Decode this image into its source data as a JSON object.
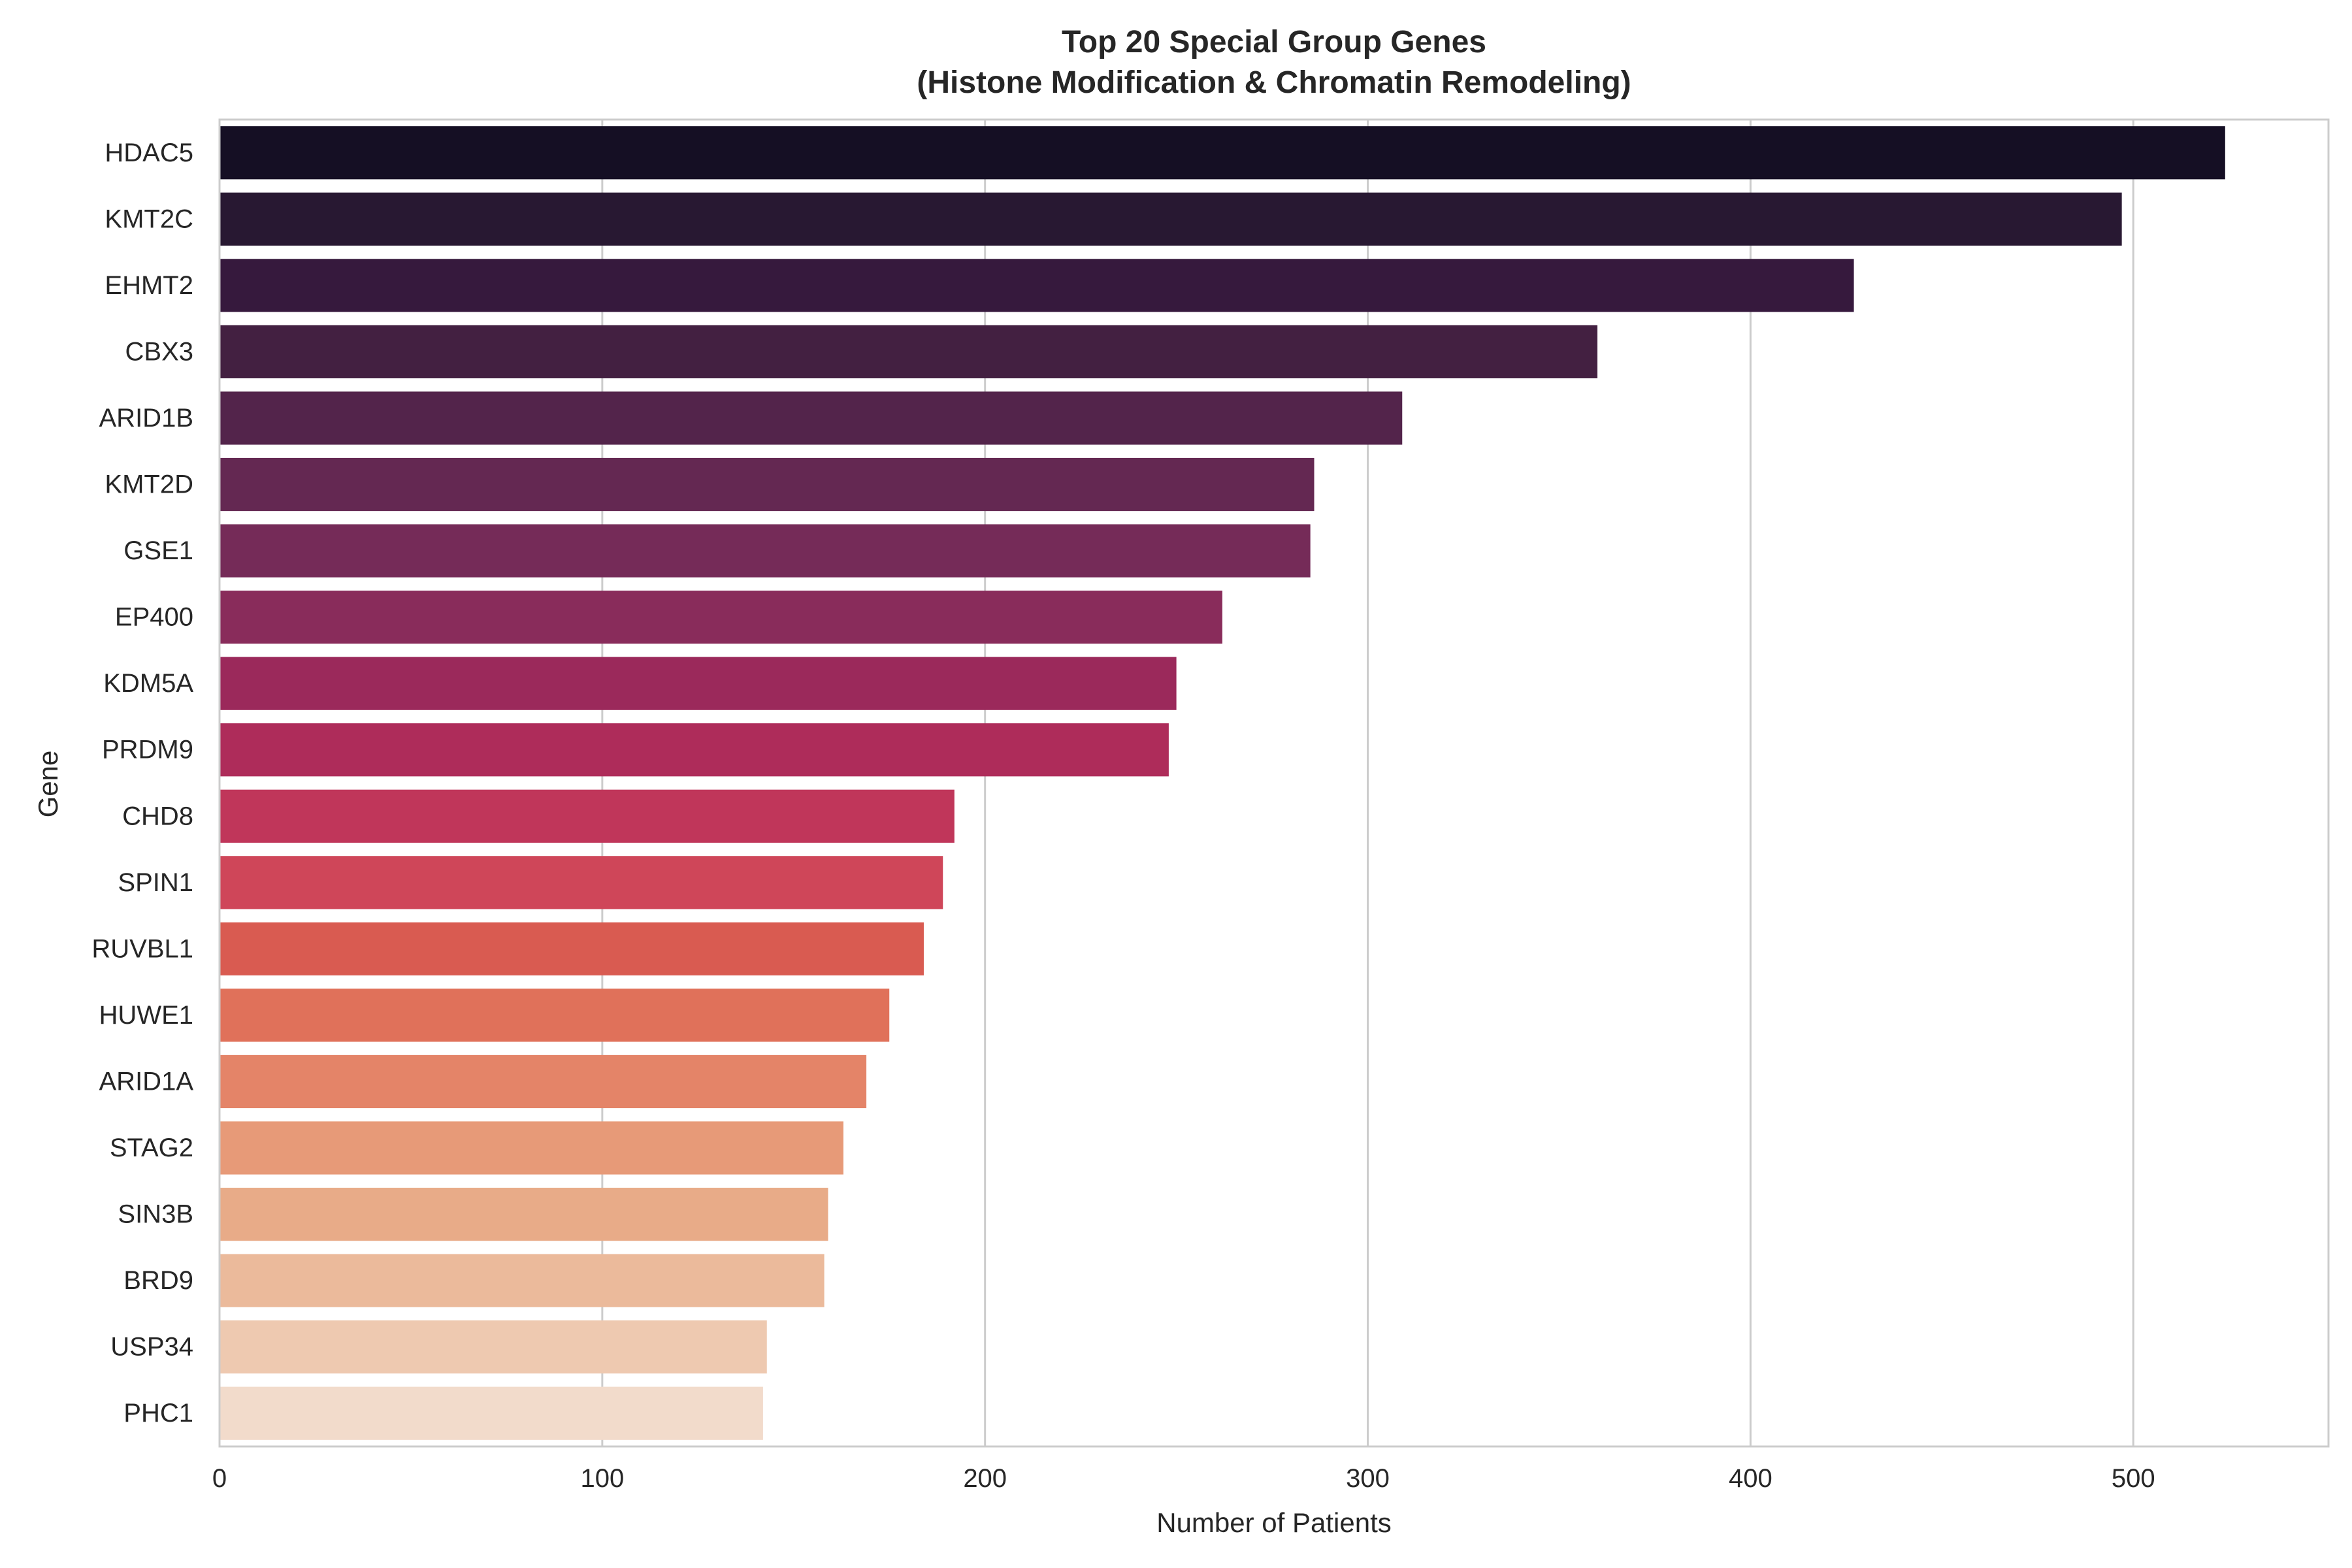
{
  "chart_data": {
    "type": "bar",
    "orientation": "horizontal",
    "title": "Top 20 Special Group Genes",
    "subtitle": "(Histone Modification & Chromatin Remodeling)",
    "xlabel": "Number of Patients",
    "ylabel": "Gene",
    "xlim": [
      0,
      551
    ],
    "x_ticks": [
      0,
      100,
      200,
      300,
      400,
      500
    ],
    "grid": true,
    "legend": "none",
    "categories": [
      "HDAC5",
      "KMT2C",
      "EHMT2",
      "CBX3",
      "ARID1B",
      "KMT2D",
      "GSE1",
      "EP400",
      "KDM5A",
      "PRDM9",
      "CHD8",
      "SPIN1",
      "RUVBL1",
      "HUWE1",
      "ARID1A",
      "STAG2",
      "SIN3B",
      "BRD9",
      "USP34",
      "PHC1"
    ],
    "values": [
      524,
      497,
      427,
      360,
      309,
      286,
      285,
      262,
      250,
      248,
      192,
      189,
      184,
      175,
      169,
      163,
      159,
      158,
      143,
      142
    ],
    "colors": [
      "#150f24",
      "#281832",
      "#36193d",
      "#432041",
      "#53244b",
      "#642852",
      "#752b58",
      "#892c5b",
      "#9b295b",
      "#ae2c5a",
      "#c0365a",
      "#cf4659",
      "#d95b51",
      "#e0715a",
      "#e48468",
      "#e79a78",
      "#e8ab88",
      "#ebba9b",
      "#eec9b0",
      "#f2dbcb"
    ],
    "grid_color": "#cccccc",
    "spine_color": "#cccccc"
  }
}
